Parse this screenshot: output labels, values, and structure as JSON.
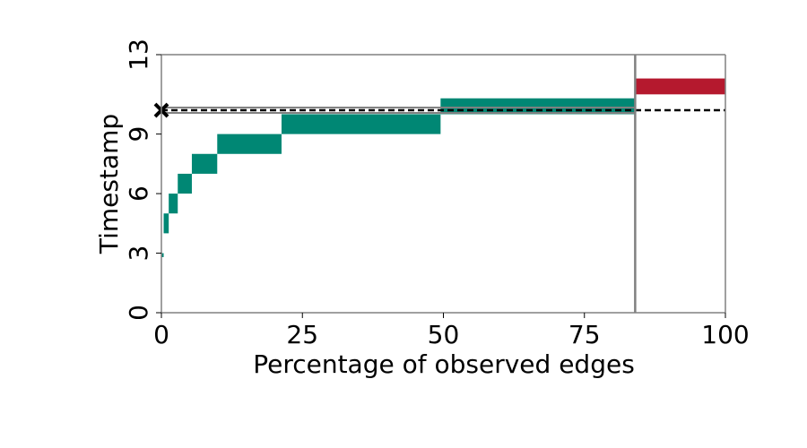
{
  "chart_data": {
    "type": "bar",
    "orientation": "horizontal-step",
    "xlabel": "Percentage of observed edges",
    "ylabel": "Timestamp",
    "xlim": [
      0,
      100
    ],
    "ylim": [
      0,
      13
    ],
    "xticks": [
      0,
      25,
      50,
      75,
      100
    ],
    "yticks": [
      0,
      3,
      6,
      9,
      13
    ],
    "grid": false,
    "observed_cutoff_x": 84,
    "threshold_y": 10.2,
    "threshold_marker": "x",
    "colors": {
      "observed": "#008774",
      "unobserved": "#b5192e",
      "boundary": "#808080",
      "threshold": "#000000"
    },
    "series": [
      {
        "color": "#008774",
        "bars": [
          {
            "x_start": 0.0,
            "x_end": 0.4,
            "y_bottom": 2.8,
            "y_top": 3.0
          },
          {
            "x_start": 0.4,
            "x_end": 1.3,
            "y_bottom": 4.0,
            "y_top": 5.0
          },
          {
            "x_start": 1.3,
            "x_end": 2.9,
            "y_bottom": 5.0,
            "y_top": 6.0
          },
          {
            "x_start": 2.9,
            "x_end": 5.4,
            "y_bottom": 6.0,
            "y_top": 7.0
          },
          {
            "x_start": 5.4,
            "x_end": 9.9,
            "y_bottom": 7.0,
            "y_top": 8.0
          },
          {
            "x_start": 9.9,
            "x_end": 21.3,
            "y_bottom": 8.0,
            "y_top": 9.0
          },
          {
            "x_start": 21.3,
            "x_end": 49.5,
            "y_bottom": 9.0,
            "y_top": 10.0
          },
          {
            "x_start": 49.5,
            "x_end": 84.0,
            "y_bottom": 10.0,
            "y_top": 10.8
          }
        ]
      },
      {
        "color": "#b5192e",
        "bars": [
          {
            "x_start": 84.0,
            "x_end": 100.0,
            "y_bottom": 11.0,
            "y_top": 11.8
          }
        ]
      }
    ]
  }
}
